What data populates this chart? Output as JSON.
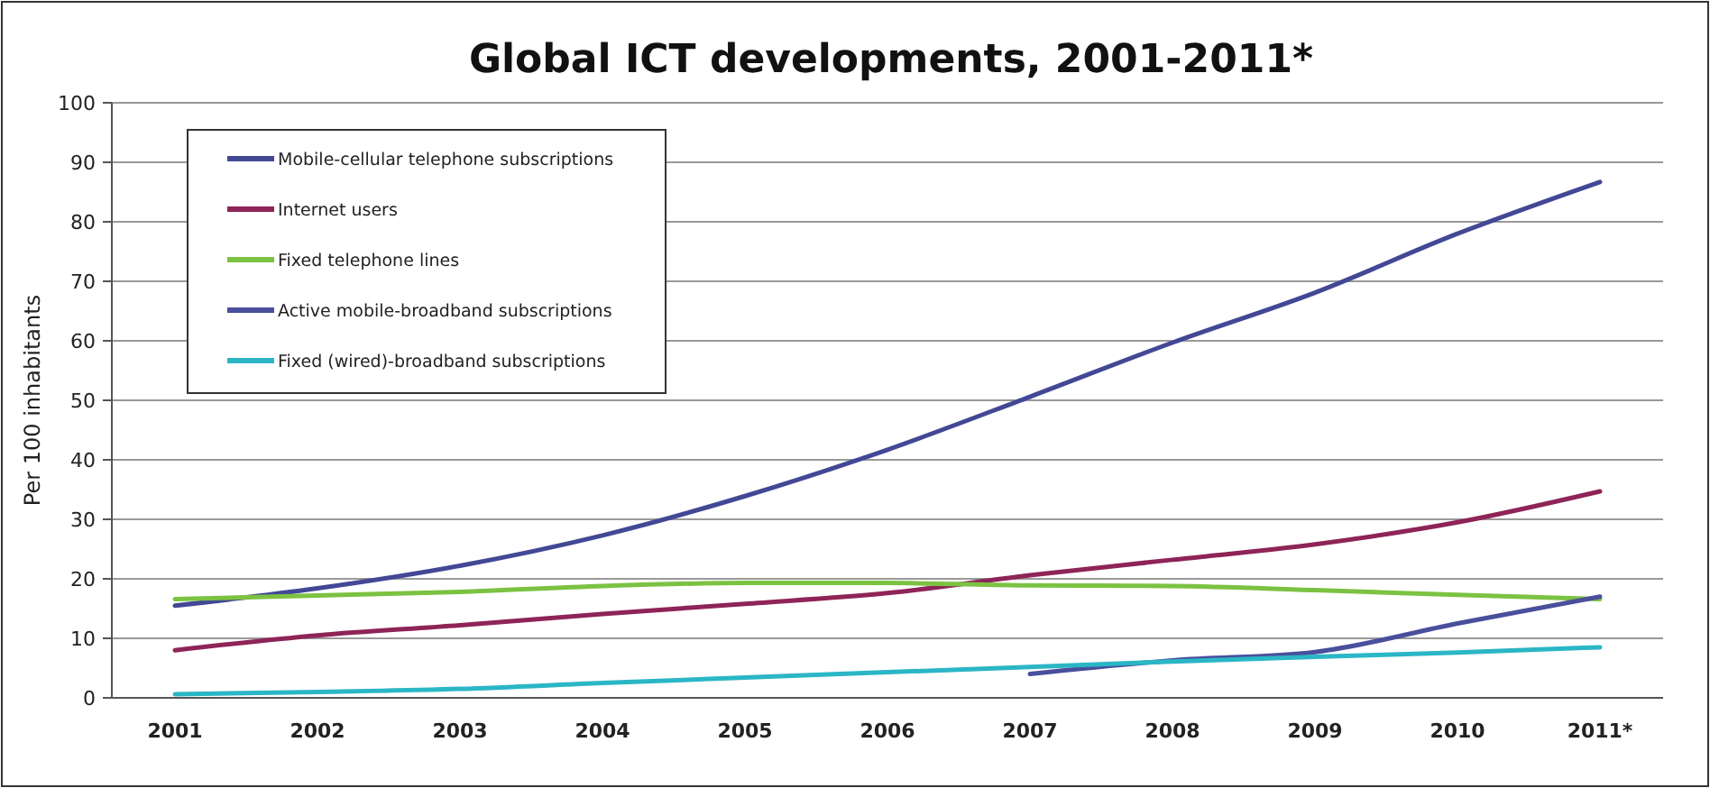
{
  "chart_data": {
    "type": "line",
    "title": "Global ICT developments, 2001-2011*",
    "ylabel": "Per 100 inhabitants",
    "categories": [
      "2001",
      "2002",
      "2003",
      "2004",
      "2005",
      "2006",
      "2007",
      "2008",
      "2009",
      "2010",
      "2011*"
    ],
    "ylim": [
      0,
      100
    ],
    "yticks": [
      0,
      10,
      20,
      30,
      40,
      50,
      60,
      70,
      80,
      90,
      100
    ],
    "grid": "y",
    "legend": "top left",
    "marker": "none",
    "line_style": "solid",
    "series": [
      {
        "name": "Mobile-cellular telephone subscriptions",
        "color": "#434895",
        "values": [
          15.5,
          18.4,
          22.2,
          27.3,
          33.9,
          41.7,
          50.6,
          59.7,
          68.1,
          78.0,
          86.7
        ]
      },
      {
        "name": "Internet users",
        "color": "#8e2457",
        "values": [
          8.0,
          10.5,
          12.2,
          14.1,
          15.8,
          17.6,
          20.6,
          23.2,
          25.8,
          29.5,
          34.7
        ]
      },
      {
        "name": "Fixed telephone lines",
        "color": "#7cc242",
        "values": [
          16.6,
          17.2,
          17.8,
          18.8,
          19.3,
          19.3,
          18.9,
          18.8,
          18.1,
          17.3,
          16.6
        ]
      },
      {
        "name": "Active mobile-broadband subscriptions",
        "color": "#4a4f9c",
        "values": [
          null,
          null,
          null,
          null,
          null,
          null,
          4.0,
          6.3,
          7.7,
          12.5,
          17.0
        ]
      },
      {
        "name": "Fixed (wired)-broadband subscriptions",
        "color": "#2bb6c6",
        "values": [
          0.6,
          1.0,
          1.5,
          2.5,
          3.4,
          4.3,
          5.2,
          6.1,
          6.9,
          7.6,
          8.5
        ]
      }
    ]
  }
}
